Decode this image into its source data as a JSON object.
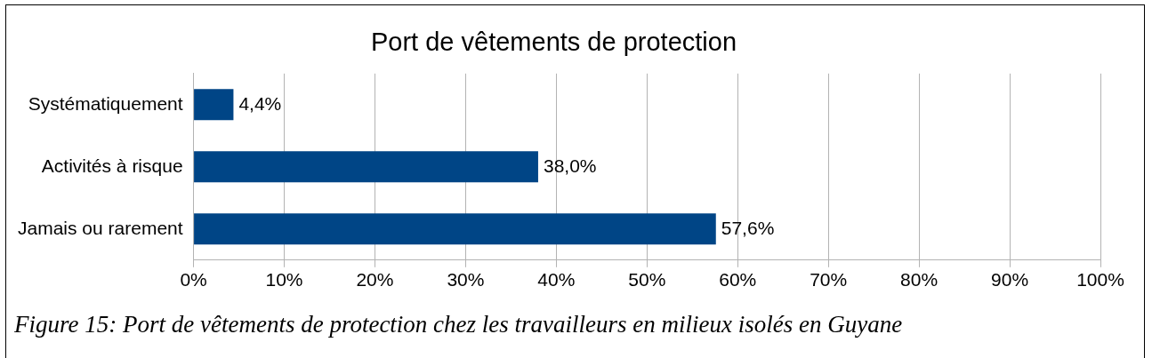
{
  "chart_data": {
    "type": "bar",
    "orientation": "horizontal",
    "title": "Port de vêtements de protection",
    "categories": [
      "Systématiquement",
      "Activités à risque",
      "Jamais ou rarement"
    ],
    "values": [
      4.4,
      38.0,
      57.6
    ],
    "color": "#004586",
    "value_labels": [
      "4,4%",
      "38,0%",
      "57,6%"
    ],
    "xlim": [
      0,
      100
    ],
    "xticks": [
      {
        "value": 0,
        "label": "0%"
      },
      {
        "value": 10,
        "label": "10%"
      },
      {
        "value": 20,
        "label": "20%"
      },
      {
        "value": 30,
        "label": "30%"
      },
      {
        "value": 40,
        "label": "40%"
      },
      {
        "value": 50,
        "label": "50%"
      },
      {
        "value": 60,
        "label": "60%"
      },
      {
        "value": 70,
        "label": "70%"
      },
      {
        "value": 80,
        "label": "80%"
      },
      {
        "value": 90,
        "label": "90%"
      },
      {
        "value": 100,
        "label": "100%"
      }
    ],
    "grid": "x",
    "annotations": [
      "Figure 15: Port de vêtements de protection chez les travailleurs en milieux isolés en Guyane"
    ]
  }
}
